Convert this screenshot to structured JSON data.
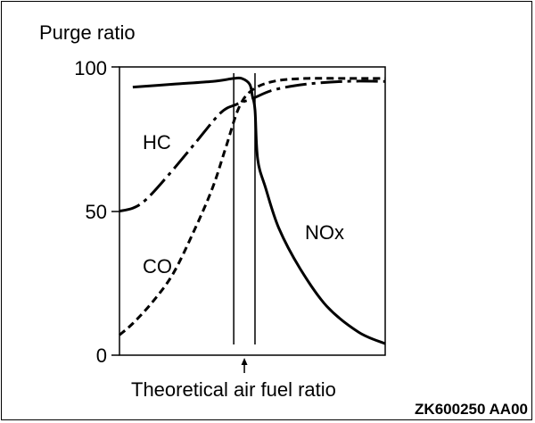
{
  "chart_data": {
    "type": "line",
    "ylabel": "Purge ratio",
    "xlabel": "Theoretical air fuel ratio",
    "yticks": [
      100,
      50,
      0
    ],
    "ylim": [
      0,
      100
    ],
    "xlim": [
      0,
      100
    ],
    "marker_x": 47,
    "band": [
      43,
      51
    ],
    "series": [
      {
        "name": "HC",
        "style": "dash-dot",
        "x": [
          0,
          5,
          10,
          18,
          28,
          38,
          44,
          50,
          58,
          70,
          85,
          100
        ],
        "y": [
          50,
          51,
          54,
          62,
          73,
          84,
          87,
          89,
          92,
          94,
          95,
          95
        ]
      },
      {
        "name": "CO",
        "style": "dashed",
        "x": [
          0,
          5,
          12,
          20,
          28,
          35,
          40,
          45,
          50,
          58,
          70,
          85,
          100
        ],
        "y": [
          7,
          11,
          18,
          28,
          43,
          58,
          72,
          86,
          92,
          95,
          96,
          96,
          96
        ]
      },
      {
        "name": "NOx",
        "style": "solid",
        "x": [
          5,
          20,
          35,
          43,
          46,
          49,
          50,
          51,
          52,
          55,
          60,
          68,
          78,
          90,
          100
        ],
        "y": [
          93,
          94,
          95,
          96,
          96,
          94,
          90,
          85,
          68,
          58,
          44,
          30,
          17,
          8,
          4
        ]
      }
    ]
  },
  "label_text": {
    "hc": "HC",
    "co": "CO",
    "nox": "NOx"
  },
  "code": "ZK600250 AA00"
}
